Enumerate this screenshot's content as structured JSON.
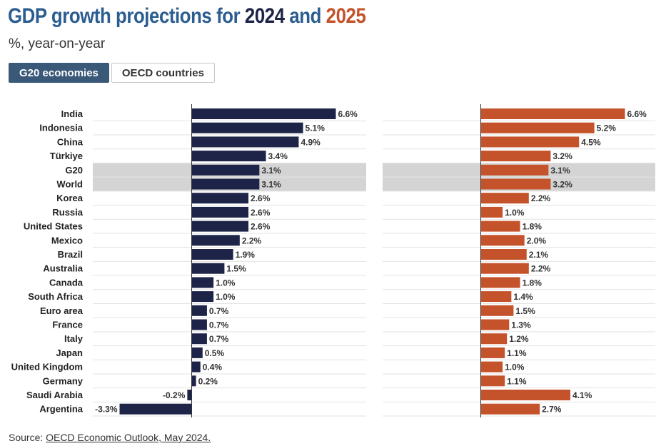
{
  "header": {
    "title_part1": "GDP growth projections for ",
    "title_year1": "2024",
    "title_and": " and ",
    "title_year2": "2025",
    "subtitle": "%, year-on-year"
  },
  "tabs": [
    {
      "label": "G20 economies",
      "active": true
    },
    {
      "label": "OECD countries",
      "active": false
    }
  ],
  "footer": {
    "source_label": "Source: ",
    "source_link": "OECD Economic Outlook, May 2024."
  },
  "colors": {
    "title": "#2b5d91",
    "year2024": "#1e2448",
    "year2025": "#c4522a",
    "highlight": "#d4d4d4"
  },
  "chart_data": {
    "type": "bar",
    "orientation": "horizontal",
    "categories": [
      "India",
      "Indonesia",
      "China",
      "Türkiye",
      "G20",
      "World",
      "Korea",
      "Russia",
      "United States",
      "Mexico",
      "Brazil",
      "Australia",
      "Canada",
      "South Africa",
      "Euro area",
      "France",
      "Italy",
      "Japan",
      "United Kingdom",
      "Germany",
      "Saudi Arabia",
      "Argentina"
    ],
    "highlighted": [
      "G20",
      "World"
    ],
    "series": [
      {
        "name": "2024",
        "color": "#1e2448",
        "values": [
          6.6,
          5.1,
          4.9,
          3.4,
          3.1,
          3.1,
          2.6,
          2.6,
          2.6,
          2.2,
          1.9,
          1.5,
          1.0,
          1.0,
          0.7,
          0.7,
          0.7,
          0.5,
          0.4,
          0.2,
          -0.2,
          -3.3
        ],
        "labels": [
          "6.6%",
          "5.1%",
          "4.9%",
          "3.4%",
          "3.1%",
          "3.1%",
          "2.6%",
          "2.6%",
          "2.6%",
          "2.2%",
          "1.9%",
          "1.5%",
          "1.0%",
          "1.0%",
          "0.7%",
          "0.7%",
          "0.7%",
          "0.5%",
          "0.4%",
          "0.2%",
          "-0.2%",
          "-3.3%"
        ]
      },
      {
        "name": "2025",
        "color": "#c4522a",
        "values": [
          6.6,
          5.2,
          4.5,
          3.2,
          3.1,
          3.2,
          2.2,
          1.0,
          1.8,
          2.0,
          2.1,
          2.2,
          1.8,
          1.4,
          1.5,
          1.3,
          1.2,
          1.1,
          1.0,
          1.1,
          4.1,
          2.7
        ],
        "labels": [
          "6.6%",
          "5.2%",
          "4.5%",
          "3.2%",
          "3.1%",
          "3.2%",
          "2.2%",
          "1.0%",
          "1.8%",
          "2.0%",
          "2.1%",
          "2.2%",
          "1.8%",
          "1.4%",
          "1.5%",
          "1.3%",
          "1.2%",
          "1.1%",
          "1.0%",
          "1.1%",
          "4.1%",
          "2.7%"
        ]
      }
    ]
  }
}
